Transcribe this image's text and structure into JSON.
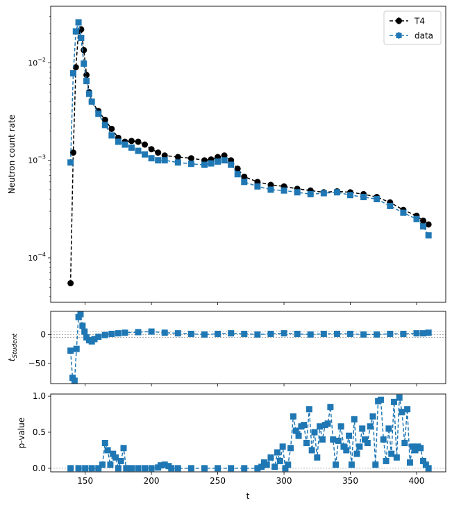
{
  "chart_data": [
    {
      "type": "line",
      "panel": "main",
      "ylabel": "Neutron count rate",
      "xlabel": "",
      "yscale": "log",
      "xlim": [
        124,
        422
      ],
      "ylim": [
        3.5e-05,
        0.038
      ],
      "ytick_labels": [
        {
          "base": "10",
          "exp": "−2",
          "value": 0.01
        },
        {
          "base": "10",
          "exp": "−3",
          "value": 0.001
        },
        {
          "base": "10",
          "exp": "−4",
          "value": 0.0001
        }
      ],
      "legend": {
        "position": "top-right",
        "entries": [
          "T4",
          "data"
        ]
      },
      "series": [
        {
          "name": "T4",
          "color": "#000000",
          "marker": "circle",
          "linestyle": "dashed",
          "x": [
            139,
            141,
            143,
            145,
            147,
            149,
            151,
            153,
            155,
            160,
            165,
            170,
            175,
            180,
            185,
            190,
            195,
            200,
            205,
            210,
            220,
            230,
            240,
            245,
            250,
            255,
            260,
            265,
            270,
            280,
            290,
            300,
            310,
            320,
            330,
            340,
            350,
            360,
            370,
            380,
            390,
            400,
            405,
            409
          ],
          "y": [
            5.5e-05,
            0.0012,
            0.009,
            0.021,
            0.022,
            0.0135,
            0.0075,
            0.005,
            0.004,
            0.0032,
            0.0026,
            0.0021,
            0.0017,
            0.00155,
            0.00158,
            0.00155,
            0.00145,
            0.0013,
            0.0012,
            0.00112,
            0.00108,
            0.00105,
            0.001,
            0.00102,
            0.00108,
            0.00112,
            0.001,
            0.00082,
            0.00068,
            0.0006,
            0.00056,
            0.00054,
            0.00051,
            0.00049,
            0.00047,
            0.00048,
            0.00047,
            0.00045,
            0.00042,
            0.00037,
            0.00031,
            0.00027,
            0.00024,
            0.00022
          ]
        },
        {
          "name": "data",
          "color": "#1f77b4",
          "marker": "square",
          "linestyle": "dashed",
          "x": [
            139,
            141,
            143,
            145,
            147,
            149,
            151,
            153,
            155,
            160,
            165,
            170,
            175,
            180,
            185,
            190,
            195,
            200,
            205,
            210,
            220,
            230,
            240,
            245,
            250,
            255,
            260,
            265,
            270,
            280,
            290,
            300,
            310,
            320,
            330,
            340,
            350,
            360,
            370,
            380,
            390,
            400,
            405,
            409
          ],
          "y": [
            0.00095,
            0.0078,
            0.021,
            0.026,
            0.018,
            0.0098,
            0.0065,
            0.0048,
            0.004,
            0.003,
            0.0023,
            0.0018,
            0.00155,
            0.00145,
            0.00135,
            0.00125,
            0.00115,
            0.00105,
            0.001,
            0.001,
            0.00095,
            0.00092,
            0.0009,
            0.00093,
            0.00097,
            0.001,
            0.0009,
            0.00072,
            0.0006,
            0.00054,
            0.0005,
            0.00049,
            0.00047,
            0.00045,
            0.00046,
            0.00047,
            0.00044,
            0.00042,
            0.0004,
            0.00034,
            0.00029,
            0.00025,
            0.00021,
            0.00017
          ]
        }
      ]
    },
    {
      "type": "line",
      "panel": "residual",
      "ylabel_base": "t",
      "ylabel_sub": "Student",
      "xlim": [
        124,
        422
      ],
      "ylim": [
        -85,
        40
      ],
      "yticks": [
        0,
        -50
      ],
      "ytick_labels": [
        "0",
        "−50"
      ],
      "reference_lines": [
        -5,
        0,
        5
      ],
      "series": [
        {
          "name": "",
          "color": "#1f77b4",
          "marker": "square",
          "linestyle": "dashed",
          "x": [
            139,
            140.5,
            142,
            143.5,
            145,
            146.5,
            148,
            149.5,
            151,
            153,
            155,
            157,
            160,
            165,
            170,
            175,
            180,
            190,
            200,
            210,
            220,
            230,
            240,
            250,
            260,
            270,
            280,
            290,
            300,
            310,
            320,
            330,
            340,
            350,
            360,
            370,
            380,
            390,
            400,
            405,
            409
          ],
          "y": [
            -28,
            -75,
            -80,
            -25,
            30,
            35,
            15,
            5,
            -5,
            -10,
            -12,
            -8,
            -4,
            -1,
            1,
            2,
            3,
            4,
            5,
            3,
            2,
            1,
            0,
            1,
            2,
            1,
            0,
            1,
            2,
            1,
            0,
            1,
            1,
            1,
            0,
            0,
            1,
            1,
            2,
            2,
            3
          ]
        }
      ]
    },
    {
      "type": "line",
      "panel": "pvalue",
      "ylabel": "p-value",
      "xlabel": "t",
      "xlim": [
        124,
        422
      ],
      "ylim": [
        -0.05,
        1.03
      ],
      "yticks": [
        0.0,
        0.5,
        1.0
      ],
      "ytick_labels": [
        "0.0",
        "0.5",
        "1.0"
      ],
      "xticks": [
        150,
        200,
        250,
        300,
        350,
        400
      ],
      "xtick_labels": [
        "150",
        "200",
        "250",
        "300",
        "350",
        "400"
      ],
      "reference_lines": [
        0.0
      ],
      "series": [
        {
          "name": "",
          "color": "#1f77b4",
          "marker": "square",
          "linestyle": "dashed",
          "x": [
            139,
            145,
            150,
            155,
            160,
            163,
            165,
            167,
            169,
            171,
            173,
            175,
            177,
            179,
            181,
            185,
            190,
            195,
            200,
            205,
            207,
            210,
            213,
            215,
            220,
            230,
            240,
            250,
            260,
            270,
            280,
            283,
            285,
            287,
            290,
            293,
            295,
            297,
            299,
            301,
            303,
            305,
            307,
            309,
            311,
            313,
            315,
            317,
            319,
            321,
            323,
            325,
            327,
            329,
            331,
            333,
            335,
            337,
            339,
            341,
            343,
            345,
            347,
            349,
            351,
            353,
            355,
            357,
            359,
            361,
            363,
            365,
            367,
            369,
            371,
            373,
            375,
            377,
            379,
            381,
            383,
            385,
            387,
            389,
            391,
            393,
            395,
            397,
            399,
            401,
            403,
            405,
            407,
            409
          ],
          "y": [
            0.0,
            0.0,
            0.0,
            0.0,
            0.0,
            0.05,
            0.35,
            0.25,
            0.05,
            0.2,
            0.15,
            0.0,
            0.1,
            0.28,
            0.0,
            0.0,
            0.0,
            0.0,
            0.0,
            0.01,
            0.04,
            0.05,
            0.03,
            0.0,
            0.0,
            0.0,
            0.0,
            0.0,
            0.0,
            0.0,
            0.0,
            0.02,
            0.08,
            0.05,
            0.15,
            0.02,
            0.22,
            0.1,
            0.3,
            0.0,
            0.05,
            0.28,
            0.72,
            0.52,
            0.45,
            0.58,
            0.6,
            0.35,
            0.82,
            0.25,
            0.5,
            0.15,
            0.58,
            0.4,
            0.6,
            0.62,
            0.85,
            0.4,
            0.05,
            0.38,
            0.58,
            0.3,
            0.25,
            0.45,
            0.05,
            0.68,
            0.2,
            0.3,
            0.55,
            0.4,
            0.35,
            0.58,
            0.72,
            0.05,
            0.93,
            0.95,
            0.4,
            0.1,
            0.55,
            0.2,
            0.92,
            0.15,
            0.98,
            0.78,
            0.35,
            0.82,
            0.08,
            0.3,
            0.25,
            0.3,
            0.28,
            0.1,
            0.05,
            0.0
          ]
        }
      ]
    }
  ]
}
